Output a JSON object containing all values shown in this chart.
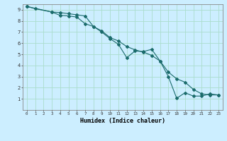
{
  "xlabel": "Humidex (Indice chaleur)",
  "bg_color": "#cceeff",
  "grid_color": "#aaddcc",
  "line_color": "#1a6b6b",
  "xlim": [
    -0.5,
    23.5
  ],
  "ylim": [
    0,
    9.5
  ],
  "xticks": [
    0,
    1,
    2,
    3,
    4,
    5,
    6,
    7,
    8,
    9,
    10,
    11,
    12,
    13,
    14,
    15,
    16,
    17,
    18,
    19,
    20,
    21,
    22,
    23
  ],
  "yticks": [
    1,
    2,
    3,
    4,
    5,
    6,
    7,
    8,
    9
  ],
  "line1_x": [
    0,
    1,
    3,
    4,
    5,
    6,
    7,
    8,
    9,
    10,
    11,
    12,
    13,
    14,
    15,
    16,
    17,
    18,
    19,
    20,
    21,
    22,
    23
  ],
  "line1_y": [
    9.3,
    9.1,
    8.8,
    8.5,
    8.45,
    8.35,
    7.75,
    7.5,
    7.1,
    6.5,
    6.2,
    5.7,
    5.4,
    5.2,
    4.9,
    4.4,
    3.4,
    2.8,
    2.5,
    1.85,
    1.45,
    1.35,
    1.35
  ],
  "line2_x": [
    0,
    3,
    4,
    5,
    6,
    7,
    8,
    9,
    10,
    11,
    12,
    13,
    14,
    15,
    16,
    17,
    18,
    19,
    20,
    21,
    22,
    23
  ],
  "line2_y": [
    9.3,
    8.8,
    8.75,
    8.65,
    8.55,
    8.45,
    7.5,
    7.0,
    6.4,
    5.9,
    4.7,
    5.3,
    5.25,
    5.45,
    4.4,
    3.0,
    1.05,
    1.55,
    1.25,
    1.25,
    1.45,
    1.35
  ]
}
